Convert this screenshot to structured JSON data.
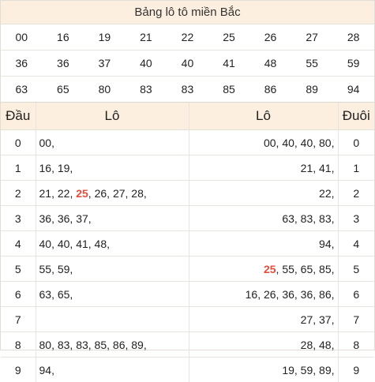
{
  "title": "Bảng lô tô miền Bắc",
  "numbers": [
    [
      "00",
      "16",
      "19",
      "21",
      "22",
      "25",
      "26",
      "27",
      "28"
    ],
    [
      "36",
      "36",
      "37",
      "40",
      "40",
      "41",
      "48",
      "55",
      "59"
    ],
    [
      "63",
      "65",
      "80",
      "83",
      "83",
      "85",
      "86",
      "89",
      "94"
    ]
  ],
  "highlight_number": "25",
  "colors": {
    "accent": "#e74c3c",
    "header_bg": "#fcefdf",
    "border": "#e8e5e0"
  },
  "headers": {
    "dau": "Đầu",
    "lo_left": "Lô",
    "lo_right": "Lô",
    "duoi": "Đuôi"
  },
  "rows": [
    {
      "dau": "0",
      "lo_left": "00,",
      "lo_right": "00, 40, 40, 80,",
      "duoi": "0"
    },
    {
      "dau": "1",
      "lo_left": "16, 19,",
      "lo_right": "21, 41,",
      "duoi": "1"
    },
    {
      "dau": "2",
      "lo_left": "21, 22, 25, 26, 27, 28,",
      "lo_right": "22,",
      "duoi": "2"
    },
    {
      "dau": "3",
      "lo_left": "36, 36, 37,",
      "lo_right": "63, 83, 83,",
      "duoi": "3"
    },
    {
      "dau": "4",
      "lo_left": "40, 40, 41, 48,",
      "lo_right": "94,",
      "duoi": "4"
    },
    {
      "dau": "5",
      "lo_left": "55, 59,",
      "lo_right": "25, 55, 65, 85,",
      "duoi": "5"
    },
    {
      "dau": "6",
      "lo_left": "63, 65,",
      "lo_right": "16, 26, 36, 36, 86,",
      "duoi": "6"
    },
    {
      "dau": "7",
      "lo_left": "",
      "lo_right": "27, 37,",
      "duoi": "7"
    },
    {
      "dau": "8",
      "lo_left": "80, 83, 83, 85, 86, 89,",
      "lo_right": "28, 48,",
      "duoi": "8"
    },
    {
      "dau": "9",
      "lo_left": "94,",
      "lo_right": "19, 59, 89,",
      "duoi": "9"
    }
  ]
}
